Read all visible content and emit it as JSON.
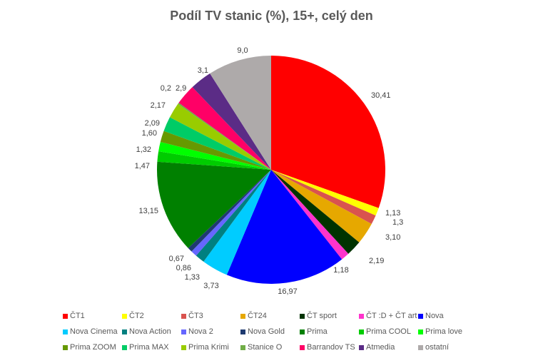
{
  "chart_data": {
    "type": "pie",
    "title": "Podíl TV stanic (%), 15+, celý den",
    "start_angle": "12 o'clock",
    "direction": "clockwise",
    "legend_position": "bottom",
    "slices": [
      {
        "label": "ČT1",
        "value": 30.41,
        "display": "30,41",
        "color": "#ff0000"
      },
      {
        "label": "ČT2",
        "value": 1.13,
        "display": "1,13",
        "color": "#ffff00"
      },
      {
        "label": "ČT3",
        "value": 1.3,
        "display": "1,3",
        "color": "#d9534f"
      },
      {
        "label": "ČT24",
        "value": 3.1,
        "display": "3,10",
        "color": "#e6a800"
      },
      {
        "label": "ČT sport",
        "value": 2.19,
        "display": "2,19",
        "color": "#003300"
      },
      {
        "label": "ČT :D + ČT art",
        "value": 1.18,
        "display": "1,18",
        "color": "#ff33cc"
      },
      {
        "label": "Nova",
        "value": 16.97,
        "display": "16,97",
        "color": "#0000ff"
      },
      {
        "label": "Nova Cinema",
        "value": 3.73,
        "display": "3,73",
        "color": "#00ccff"
      },
      {
        "label": "Nova Action",
        "value": 1.33,
        "display": "1,33",
        "color": "#008080"
      },
      {
        "label": "Nova 2",
        "value": 0.86,
        "display": "0,86",
        "color": "#6666ff"
      },
      {
        "label": "Nova Gold",
        "value": 0.67,
        "display": "0,67",
        "color": "#1f3a70"
      },
      {
        "label": "Prima",
        "value": 13.15,
        "display": "13,15",
        "color": "#008000"
      },
      {
        "label": "Prima COOL",
        "value": 1.47,
        "display": "1,47",
        "color": "#00cc00"
      },
      {
        "label": "Prima love",
        "value": 1.32,
        "display": "1,32",
        "color": "#00ff00"
      },
      {
        "label": "Prima ZOOM",
        "value": 1.6,
        "display": "1,60",
        "color": "#669900"
      },
      {
        "label": "Prima MAX",
        "value": 2.09,
        "display": "2,09",
        "color": "#00cc66"
      },
      {
        "label": "Prima Krimi",
        "value": 2.17,
        "display": "2,17",
        "color": "#99cc00"
      },
      {
        "label": "Stanice O",
        "value": 0.2,
        "display": "0,2",
        "color": "#70ad47"
      },
      {
        "label": "Barrandov TS",
        "value": 2.9,
        "display": "2,9",
        "color": "#ff0066"
      },
      {
        "label": "Atmedia",
        "value": 3.1,
        "display": "3,1",
        "color": "#5b2c86"
      },
      {
        "label": "ostatní",
        "value": 9.0,
        "display": "9,0",
        "color": "#aeaaaa"
      }
    ]
  }
}
